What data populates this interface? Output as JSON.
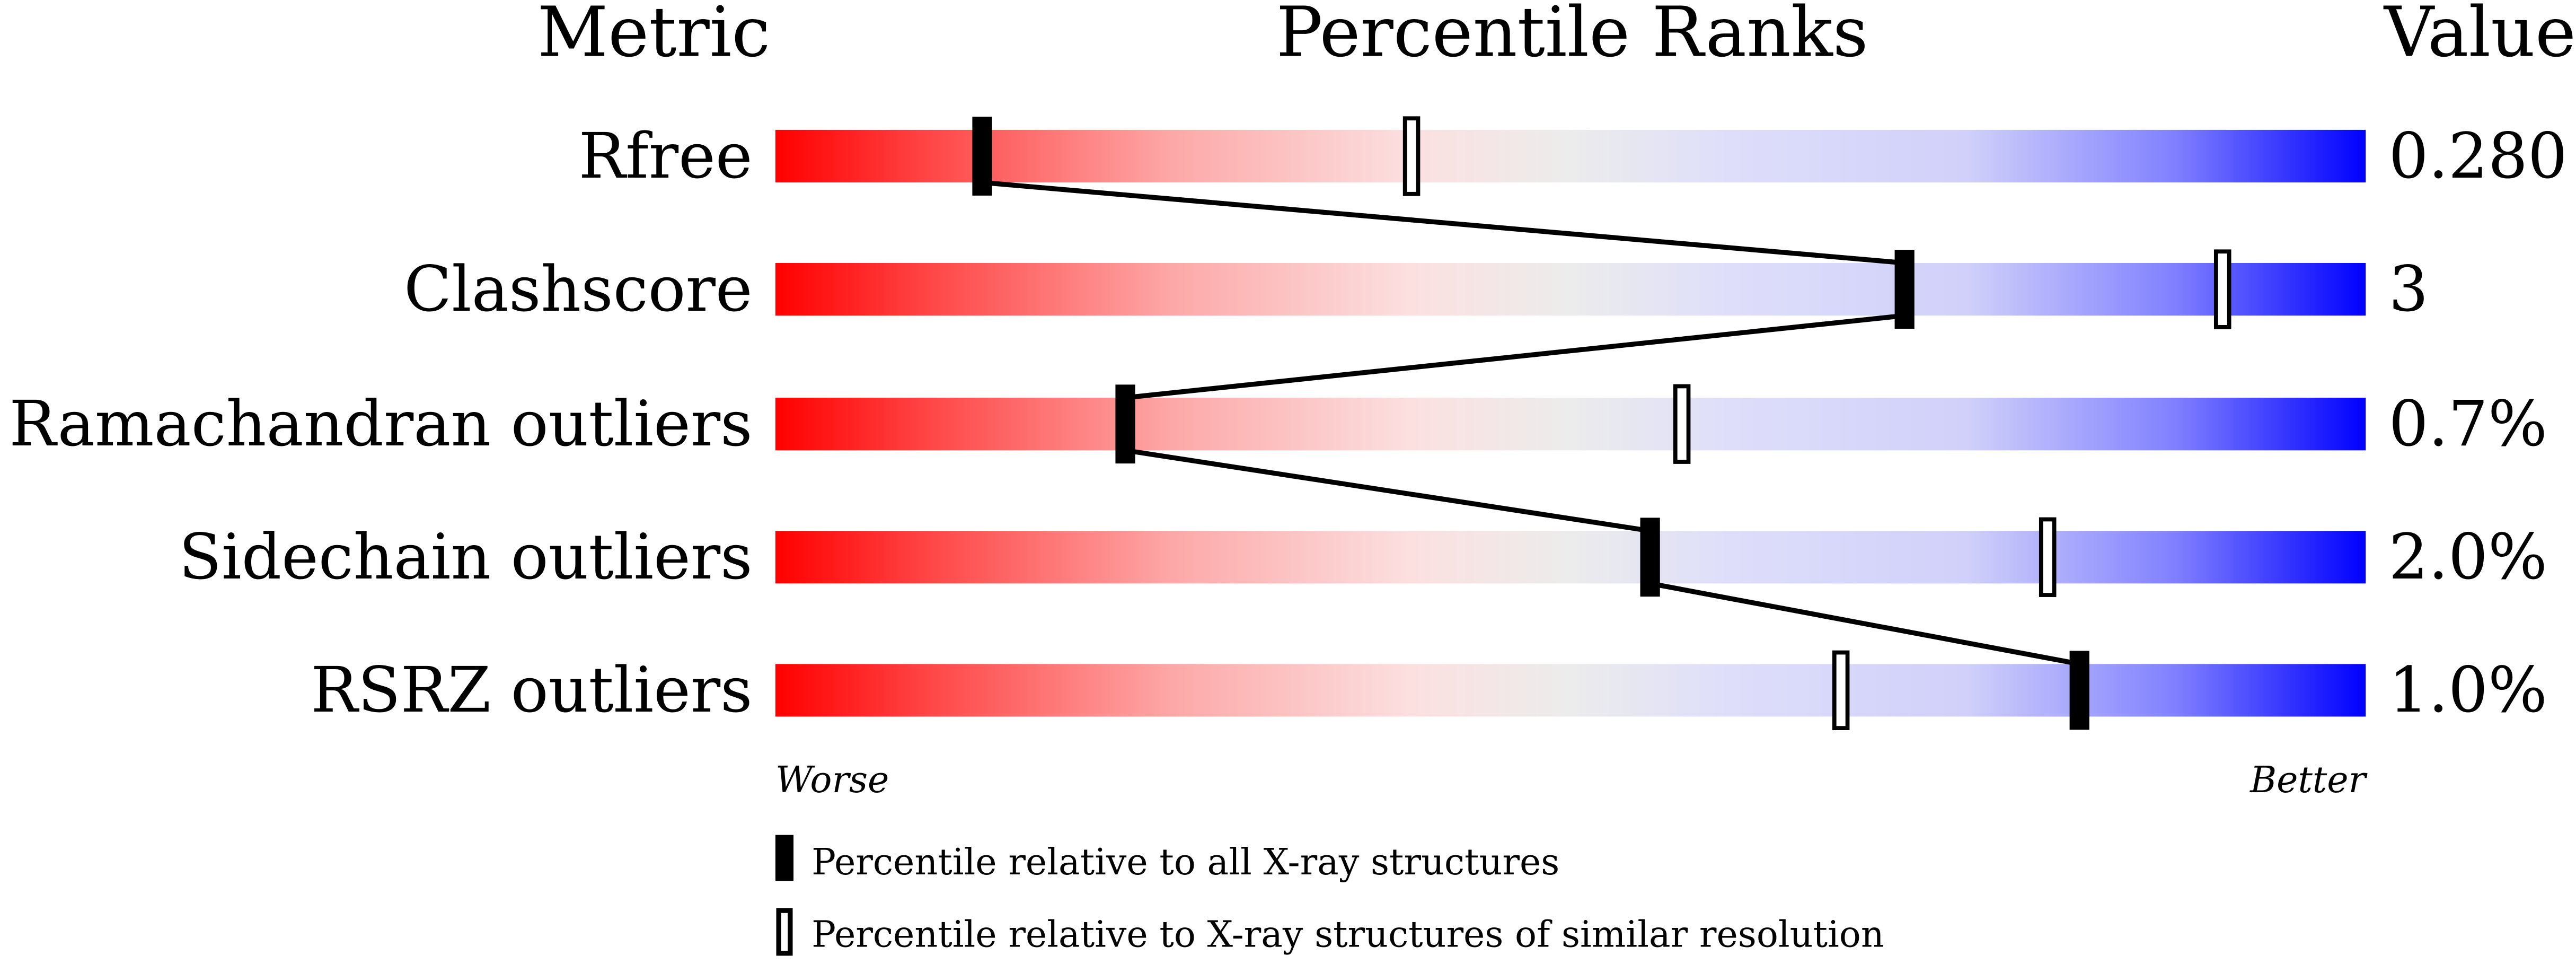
{
  "chart_data": {
    "type": "percentile-slider",
    "headers": {
      "metric": "Metric",
      "ranks": "Percentile Ranks",
      "value": "Value"
    },
    "xlim": [
      0,
      100
    ],
    "axis_labels": {
      "left": "Worse",
      "right": "Better"
    },
    "rows": [
      {
        "metric": "Rfree",
        "value": "0.280",
        "percentile_all": 13,
        "percentile_similar": 40
      },
      {
        "metric": "Clashscore",
        "value": "3",
        "percentile_all": 71,
        "percentile_similar": 91
      },
      {
        "metric": "Ramachandran outliers",
        "value": "0.7%",
        "percentile_all": 22,
        "percentile_similar": 57
      },
      {
        "metric": "Sidechain outliers",
        "value": "2.0%",
        "percentile_all": 55,
        "percentile_similar": 80
      },
      {
        "metric": "RSRZ outliers",
        "value": "1.0%",
        "percentile_all": 82,
        "percentile_similar": 67
      }
    ],
    "legend": [
      {
        "marker": "filled",
        "label": "Percentile relative to all X-ray structures"
      },
      {
        "marker": "open",
        "label": "Percentile relative to X-ray structures of similar resolution"
      }
    ],
    "colors": {
      "worse": "#ff0000",
      "middle": "#eeeeee",
      "better": "#0000ff",
      "marker": "#000000"
    }
  }
}
